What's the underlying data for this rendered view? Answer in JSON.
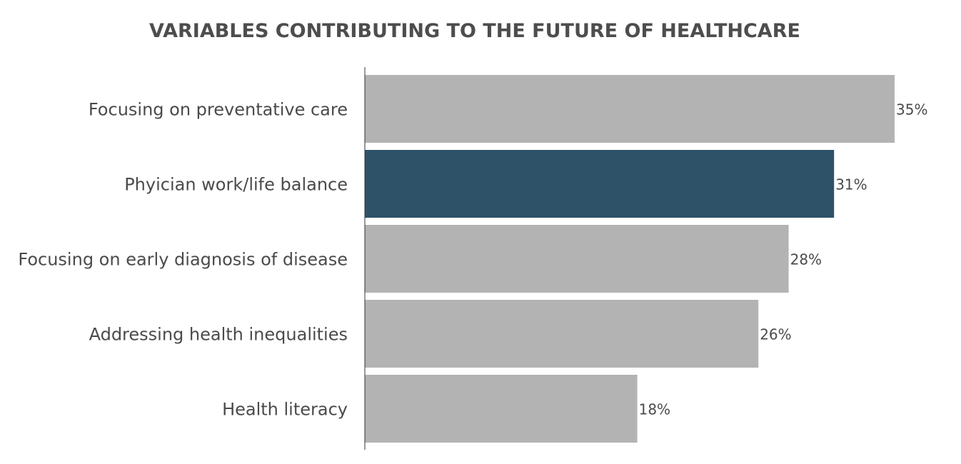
{
  "chart_data": {
    "type": "bar",
    "orientation": "horizontal",
    "title": "VARIABLES CONTRIBUTING TO THE FUTURE OF HEALTHCARE",
    "categories": [
      "Focusing on preventative care",
      "Phyician work/life balance",
      "Focusing on early diagnosis of disease",
      "Addressing health inequalities",
      "Health literacy"
    ],
    "values": [
      35,
      31,
      28,
      26,
      18
    ],
    "value_labels": [
      "35%",
      "31%",
      "28%",
      "26%",
      "18%"
    ],
    "unit": "%",
    "highlight_index": 1,
    "colors": {
      "default_bar": "#b3b3b3",
      "highlight_bar": "#2e5268",
      "axis": "#333333",
      "text": "#4a4a4a",
      "title": "#4d4d4d"
    },
    "xlabel": "",
    "ylabel": "",
    "xlim": [
      0,
      35
    ],
    "grid": false,
    "legend": "none"
  }
}
